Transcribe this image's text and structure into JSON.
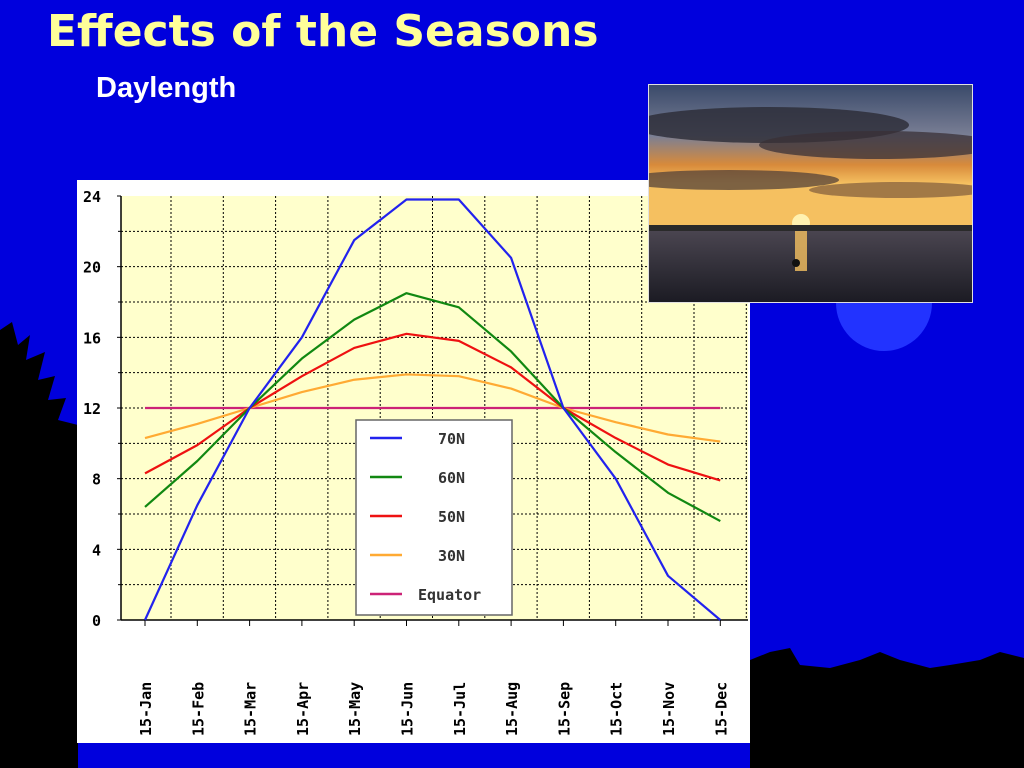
{
  "slide": {
    "title": "Effects of the Seasons",
    "subtitle": "Daylength",
    "background_color": "#0000dd",
    "title_color": "#ffff99"
  },
  "photo": {
    "description_icon": "sunset-over-water-image"
  },
  "chart_data": {
    "type": "line",
    "title": "",
    "xlabel": "",
    "ylabel": "",
    "ylim": [
      0,
      24
    ],
    "yticks": [
      "0",
      "4",
      "8",
      "12",
      "16",
      "20",
      "24"
    ],
    "categories": [
      "15-Jan",
      "15-Feb",
      "15-Mar",
      "15-Apr",
      "15-May",
      "15-Jun",
      "15-Jul",
      "15-Aug",
      "15-Sep",
      "15-Oct",
      "15-Nov",
      "15-Dec"
    ],
    "grid": true,
    "legend_position": "center-bottom",
    "plot_background": "#ffffcc",
    "series": [
      {
        "name": "70N",
        "color": "#2222ee",
        "values": [
          0,
          6.5,
          12,
          16,
          21.5,
          24,
          24,
          20.5,
          12,
          8,
          2.5,
          0
        ]
      },
      {
        "name": "60N",
        "color": "#118811",
        "values": [
          6.4,
          9,
          12,
          14.8,
          17,
          18.5,
          17.7,
          15.2,
          12,
          9.5,
          7.2,
          5.6
        ]
      },
      {
        "name": "50N",
        "color": "#ee1111",
        "values": [
          8.3,
          9.9,
          12,
          13.8,
          15.4,
          16.2,
          15.8,
          14.3,
          12,
          10.3,
          8.8,
          7.9
        ]
      },
      {
        "name": "30N",
        "color": "#ffaa33",
        "values": [
          10.3,
          11.1,
          12,
          12.9,
          13.6,
          13.9,
          13.8,
          13.1,
          12,
          11.2,
          10.5,
          10.1
        ]
      },
      {
        "name": "Equator",
        "color": "#cc2277",
        "values": [
          12,
          12,
          12,
          12,
          12,
          12,
          12,
          12,
          12,
          12,
          12,
          12
        ]
      }
    ]
  }
}
